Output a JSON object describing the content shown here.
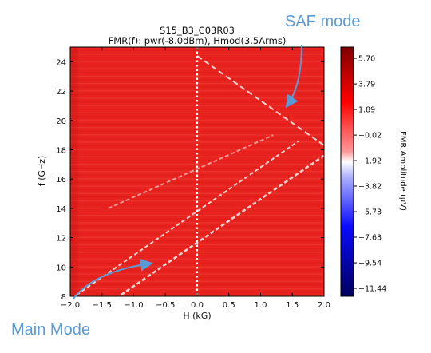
{
  "chart_data": {
    "type": "heatmap",
    "title": "S15_B3_C03R03",
    "subtitle": "FMR(f): pwr(-8.0dBm), Hmod(3.5Arms)",
    "xlabel": "H (kG)",
    "ylabel": "f (GHz)",
    "xlim": [
      -2.0,
      2.0
    ],
    "ylim": [
      8,
      25
    ],
    "x_ticks": [
      "−2.0",
      "−1.5",
      "−1.0",
      "−0.5",
      "0.0",
      "0.5",
      "1.0",
      "1.5",
      "2.0"
    ],
    "x_tick_values": [
      -2.0,
      -1.5,
      -1.0,
      -0.5,
      0.0,
      0.5,
      1.0,
      1.5,
      2.0
    ],
    "y_ticks": [
      "8",
      "10",
      "12",
      "14",
      "16",
      "18",
      "20",
      "22",
      "24"
    ],
    "y_tick_values": [
      8,
      10,
      12,
      14,
      16,
      18,
      20,
      22,
      24
    ],
    "colorbar": {
      "label": "FMR Amplitude (μV)",
      "min": -11.44,
      "max": 5.7,
      "tick_labels": [
        "5.70",
        "3.79",
        "1.89",
        "−0.02",
        "−1.92",
        "−3.82",
        "−5.73",
        "−7.63",
        "−9.54",
        "−11.44"
      ],
      "tick_values": [
        5.7,
        3.79,
        1.89,
        -0.02,
        -1.92,
        -3.82,
        -5.73,
        -7.63,
        -9.54,
        -11.44
      ]
    },
    "background_amplitude": 3.0,
    "resonance_lines": [
      {
        "points": [
          [
            -1.2,
            8.1
          ],
          [
            2.0,
            17.6
          ]
        ]
      },
      {
        "points": [
          [
            -1.9,
            8.1
          ],
          [
            1.6,
            18.6
          ]
        ]
      },
      {
        "points": [
          [
            -1.4,
            14.0
          ],
          [
            1.2,
            19.0
          ]
        ]
      },
      {
        "points": [
          [
            0.0,
            24.4
          ],
          [
            2.0,
            18.3
          ]
        ]
      }
    ],
    "reference_line": {
      "x": 0.0
    },
    "colors": {
      "background": "#e8221e",
      "resonance": "#f8e4e0",
      "reference_line": "#ffffff",
      "annotation": "#5b9bd5"
    }
  },
  "annotations": [
    {
      "text": "SAF mode"
    },
    {
      "text": "Main Mode"
    }
  ]
}
